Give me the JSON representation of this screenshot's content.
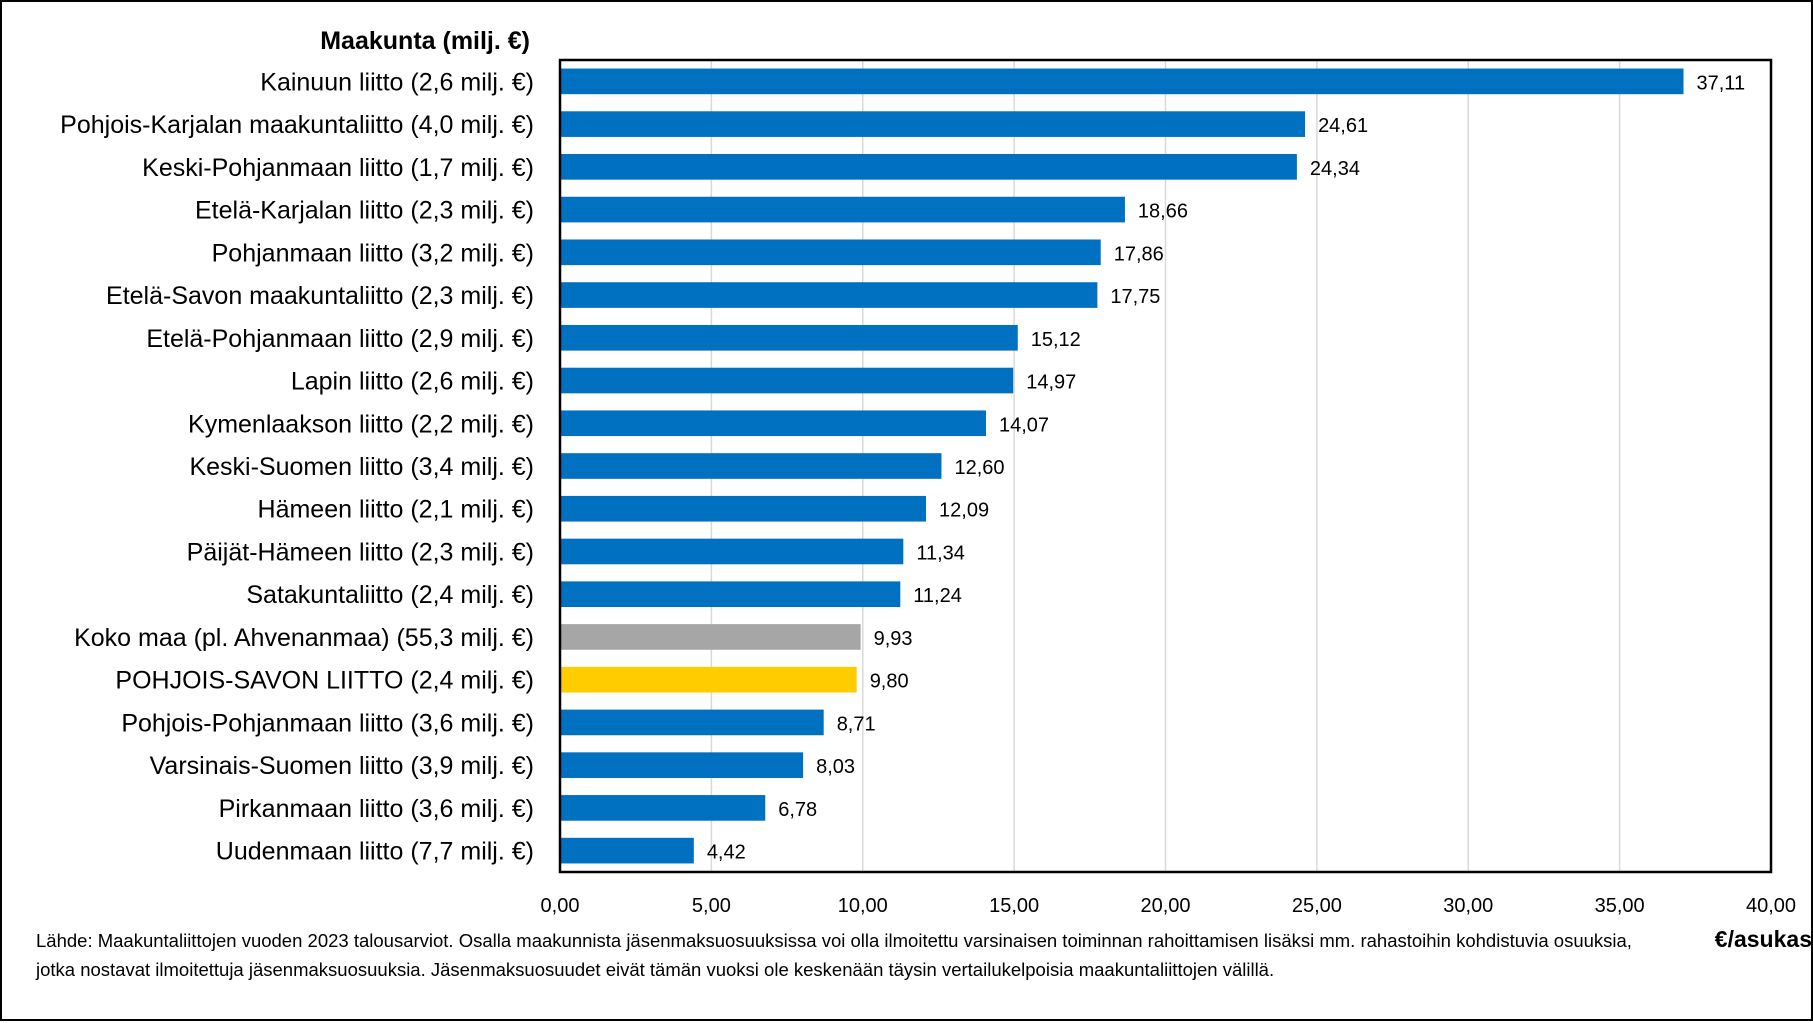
{
  "chart_data": {
    "type": "bar",
    "orientation": "horizontal",
    "ylabel": "Maakunta (milj. €)",
    "xlabel": "€/asukas",
    "xlim": [
      0,
      40
    ],
    "x_ticks": [
      "0,00",
      "5,00",
      "10,00",
      "15,00",
      "20,00",
      "25,00",
      "30,00",
      "35,00",
      "40,00"
    ],
    "grid": "vertical",
    "categories": [
      "Kainuun liitto (2,6 milj. €)",
      "Pohjois-Karjalan maakuntaliitto (4,0 milj. €)",
      "Keski-Pohjanmaan liitto (1,7 milj. €)",
      "Etelä-Karjalan liitto (2,3 milj. €)",
      "Pohjanmaan liitto (3,2 milj. €)",
      "Etelä-Savon maakuntaliitto (2,3 milj. €)",
      "Etelä-Pohjanmaan liitto (2,9 milj. €)",
      "Lapin liitto (2,6 milj. €)",
      "Kymenlaakson liitto (2,2 milj. €)",
      "Keski-Suomen liitto (3,4 milj. €)",
      "Hämeen liitto (2,1 milj. €)",
      "Päijät-Hämeen liitto (2,3 milj. €)",
      "Satakuntaliitto (2,4 milj. €)",
      "Koko maa (pl. Ahvenanmaa) (55,3 milj. €)",
      "POHJOIS-SAVON LIITTO (2,4 milj. €)",
      "Pohjois-Pohjanmaan liitto (3,6 milj. €)",
      "Varsinais-Suomen liitto (3,9 milj. €)",
      "Pirkanmaan liitto (3,6 milj. €)",
      "Uudenmaan liitto (7,7 milj. €)"
    ],
    "values": [
      37.11,
      24.61,
      24.34,
      18.66,
      17.86,
      17.75,
      15.12,
      14.97,
      14.07,
      12.6,
      12.09,
      11.34,
      11.24,
      9.93,
      9.8,
      8.71,
      8.03,
      6.78,
      4.42
    ],
    "value_labels": [
      "37,11",
      "24,61",
      "24,34",
      "18,66",
      "17,86",
      "17,75",
      "15,12",
      "14,97",
      "14,07",
      "12,60",
      "12,09",
      "11,34",
      "11,24",
      "9,93",
      "9,80",
      "8,71",
      "8,03",
      "6,78",
      "4,42"
    ],
    "bar_colors": [
      "#0070C0",
      "#0070C0",
      "#0070C0",
      "#0070C0",
      "#0070C0",
      "#0070C0",
      "#0070C0",
      "#0070C0",
      "#0070C0",
      "#0070C0",
      "#0070C0",
      "#0070C0",
      "#0070C0",
      "#A6A6A6",
      "#FFCC00",
      "#0070C0",
      "#0070C0",
      "#0070C0",
      "#0070C0"
    ],
    "gridline_color": "#D9D9D9"
  },
  "source_note": "Lähde: Maakuntaliittojen vuoden 2023 talousarviot. Osalla maakunnista jäsenmaksuosuuksissa voi olla ilmoitettu varsinaisen toiminnan rahoittamisen lisäksi mm. rahastoihin kohdistuvia osuuksia, jotka nostavat ilmoitettuja jäsenmaksuosuuksia. Jäsenmaksuosuudet eivät tämän vuoksi ole keskenään täysin vertailukelpoisia maakuntaliittojen välillä."
}
